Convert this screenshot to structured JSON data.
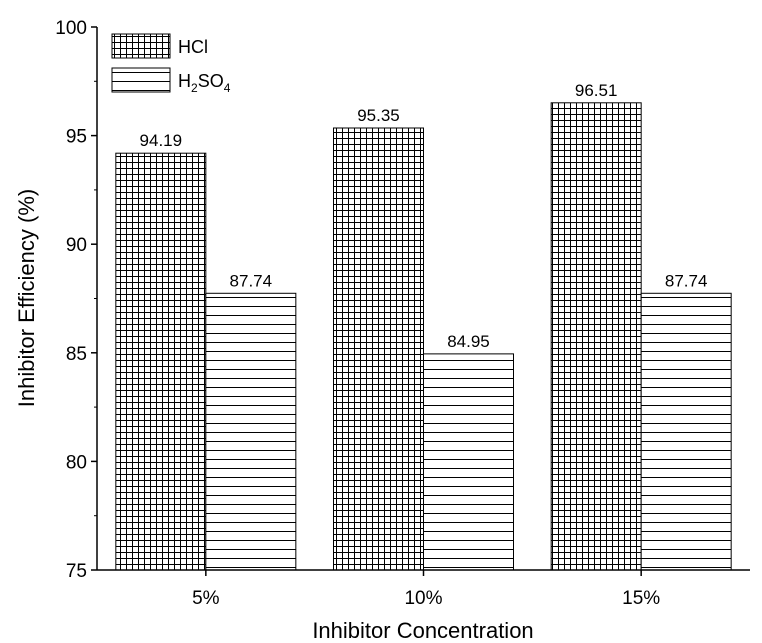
{
  "chart_data": {
    "type": "bar",
    "categories": [
      "5%",
      "10%",
      "15%"
    ],
    "series": [
      {
        "name": "HCl",
        "values": [
          94.19,
          95.35,
          96.51
        ],
        "pattern": "grid"
      },
      {
        "name": "H2SO4",
        "values": [
          87.74,
          84.95,
          87.74
        ],
        "pattern": "horizontal-lines"
      }
    ],
    "data_labels": [
      [
        "94.19",
        "95.35",
        "96.51"
      ],
      [
        "87.74",
        "84.95",
        "87.74"
      ]
    ],
    "xlabel": "Inhibitor Concentration",
    "ylabel": "Inhibitor Efficiency (%)",
    "ylim": [
      75,
      100
    ],
    "yticks": [
      75,
      80,
      85,
      90,
      95,
      100
    ],
    "legend": {
      "position": "top-left",
      "entries": [
        "HCl",
        "H2SO4"
      ]
    },
    "grid": false,
    "colors": {
      "bar_fill": "#ffffff",
      "bar_stroke": "#000000",
      "axis": "#000000"
    }
  }
}
